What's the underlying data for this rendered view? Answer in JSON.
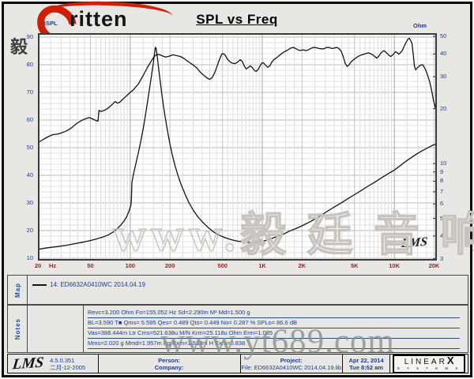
{
  "header": {
    "title": "SPL vs Freq",
    "title_color": "#2e6b9e",
    "logo_brand": "ritten",
    "logo_cjk": "毅廷音响",
    "swoosh_color": "#cf1f04"
  },
  "watermarks": {
    "center": "www.毅 廷 音 响",
    "bottom": "www.yt689.com",
    "lms_stamp": "LMS"
  },
  "chart_data": {
    "type": "line",
    "title": "SPL vs Freq",
    "grid": true,
    "x_axis": {
      "scale": "log",
      "min": 20,
      "max": 21000,
      "unit_label": "Hz",
      "label_color": "#8c2626",
      "ticks": [
        {
          "v": 20,
          "label": "20"
        },
        {
          "v": 50,
          "label": "50"
        },
        {
          "v": 100,
          "label": "100"
        },
        {
          "v": 200,
          "label": "200"
        },
        {
          "v": 500,
          "label": "500"
        },
        {
          "v": 1000,
          "label": "1K"
        },
        {
          "v": 2000,
          "label": "2K"
        },
        {
          "v": 5000,
          "label": "5K"
        },
        {
          "v": 10000,
          "label": "10K"
        },
        {
          "v": 20000,
          "label": "20K"
        }
      ]
    },
    "y_left_axis": {
      "label": "dBSPL",
      "scale": "linear",
      "min": 10,
      "max": 90,
      "minor_step": 2,
      "ticks": [
        90,
        80,
        70,
        60,
        50,
        40,
        30,
        20,
        10
      ],
      "label_color": "#1d3f8f"
    },
    "y_right_axis": {
      "label": "Ohm",
      "scale": "log",
      "min": 3,
      "max": 50,
      "ticks": [
        50,
        40,
        30,
        20,
        10,
        9,
        8,
        7,
        6,
        5,
        4,
        3
      ],
      "label_color": "#1d3f8f"
    },
    "series": [
      {
        "name": "SPL",
        "legend": "14: ED6632A0410WC  2014.04.19",
        "axis": "left",
        "unit": "dB",
        "color": "#141414",
        "points": [
          [
            20,
            51.8
          ],
          [
            22,
            53
          ],
          [
            24,
            54
          ],
          [
            26,
            54.7
          ],
          [
            28,
            54.9
          ],
          [
            30,
            55.3
          ],
          [
            32,
            55.8
          ],
          [
            34,
            56.4
          ],
          [
            36,
            57.2
          ],
          [
            38,
            58.2
          ],
          [
            40,
            59
          ],
          [
            43,
            59.9
          ],
          [
            46,
            60.5
          ],
          [
            49,
            60.9
          ],
          [
            52,
            60.4
          ],
          [
            55,
            59.8
          ],
          [
            57,
            59.6
          ],
          [
            58,
            63.5
          ],
          [
            60,
            63.1
          ],
          [
            63,
            63.4
          ],
          [
            66,
            63.9
          ],
          [
            70,
            64.8
          ],
          [
            74,
            65.9
          ],
          [
            77,
            66.7
          ],
          [
            80,
            66.1
          ],
          [
            83,
            66.4
          ],
          [
            87,
            67.3
          ],
          [
            91,
            68.2
          ],
          [
            95,
            69
          ],
          [
            100,
            70
          ],
          [
            105,
            70.8
          ],
          [
            115,
            73
          ],
          [
            125,
            76
          ],
          [
            135,
            79
          ],
          [
            145,
            81.5
          ],
          [
            152,
            83
          ],
          [
            160,
            83.8
          ],
          [
            168,
            83.6
          ],
          [
            175,
            83.2
          ],
          [
            185,
            82.8
          ],
          [
            195,
            83
          ],
          [
            210,
            83.6
          ],
          [
            225,
            83.3
          ],
          [
            240,
            83
          ],
          [
            255,
            82.3
          ],
          [
            270,
            81.4
          ],
          [
            285,
            80.6
          ],
          [
            300,
            79.9
          ],
          [
            320,
            78.8
          ],
          [
            340,
            77.3
          ],
          [
            360,
            76.2
          ],
          [
            380,
            75.3
          ],
          [
            400,
            74.7
          ],
          [
            415,
            75.2
          ],
          [
            435,
            77
          ],
          [
            455,
            79.5
          ],
          [
            475,
            82
          ],
          [
            495,
            83.9
          ],
          [
            510,
            84
          ],
          [
            525,
            83.4
          ],
          [
            545,
            82
          ],
          [
            565,
            81.2
          ],
          [
            590,
            80.6
          ],
          [
            620,
            80.4
          ],
          [
            650,
            80.9
          ],
          [
            680,
            81.8
          ],
          [
            705,
            81.3
          ],
          [
            730,
            79.6
          ],
          [
            755,
            78.5
          ],
          [
            780,
            78.9
          ],
          [
            810,
            79.6
          ],
          [
            840,
            79
          ],
          [
            870,
            78
          ],
          [
            900,
            77.6
          ],
          [
            930,
            78.3
          ],
          [
            960,
            79.5
          ],
          [
            990,
            80.6
          ],
          [
            1020,
            80.7
          ],
          [
            1060,
            79.8
          ],
          [
            1100,
            79.1
          ],
          [
            1140,
            79.6
          ],
          [
            1180,
            80.9
          ],
          [
            1230,
            81.9
          ],
          [
            1300,
            82.7
          ],
          [
            1380,
            83.8
          ],
          [
            1460,
            84.6
          ],
          [
            1550,
            85.3
          ],
          [
            1640,
            86
          ],
          [
            1720,
            86.3
          ],
          [
            1800,
            85.8
          ],
          [
            1880,
            85.3
          ],
          [
            1960,
            85.2
          ],
          [
            2050,
            85.4
          ],
          [
            2150,
            85.1
          ],
          [
            2250,
            85.5
          ],
          [
            2350,
            86
          ],
          [
            2450,
            86.3
          ],
          [
            2600,
            86.1
          ],
          [
            2750,
            85.8
          ],
          [
            2900,
            85.7
          ],
          [
            3050,
            86.2
          ],
          [
            3200,
            86.3
          ],
          [
            3350,
            85.9
          ],
          [
            3500,
            86
          ],
          [
            3650,
            86.3
          ],
          [
            3800,
            85.9
          ],
          [
            3950,
            85
          ],
          [
            4100,
            83
          ],
          [
            4250,
            80.5
          ],
          [
            4400,
            79.4
          ],
          [
            4550,
            80
          ],
          [
            4700,
            81
          ],
          [
            4900,
            81.8
          ],
          [
            5100,
            82.4
          ],
          [
            5350,
            83.1
          ],
          [
            5600,
            83.5
          ],
          [
            5850,
            83.8
          ],
          [
            6100,
            84.1
          ],
          [
            6350,
            84.3
          ],
          [
            6600,
            84
          ],
          [
            6850,
            83.6
          ],
          [
            7100,
            83
          ],
          [
            7350,
            82.4
          ],
          [
            7600,
            83
          ],
          [
            7850,
            84
          ],
          [
            8100,
            84.7
          ],
          [
            8350,
            85.1
          ],
          [
            8600,
            84.6
          ],
          [
            8850,
            84
          ],
          [
            9100,
            83.5
          ],
          [
            9350,
            83
          ],
          [
            9600,
            83.3
          ],
          [
            9900,
            84
          ],
          [
            10200,
            84.7
          ],
          [
            10500,
            84.4
          ],
          [
            10800,
            83.8
          ],
          [
            11100,
            84.3
          ],
          [
            11500,
            85.2
          ],
          [
            11900,
            86.8
          ],
          [
            12300,
            88.2
          ],
          [
            12700,
            89.3
          ],
          [
            13000,
            89.6
          ],
          [
            13300,
            88.8
          ],
          [
            13600,
            87.7
          ],
          [
            13900,
            84
          ],
          [
            14200,
            79.5
          ],
          [
            14500,
            78.2
          ],
          [
            14900,
            78.8
          ],
          [
            15400,
            79.5
          ],
          [
            15900,
            79.9
          ],
          [
            16400,
            80
          ],
          [
            16900,
            79
          ],
          [
            17400,
            77.8
          ],
          [
            18000,
            75.8
          ],
          [
            18600,
            73.5
          ],
          [
            19200,
            70.5
          ],
          [
            19700,
            67.5
          ],
          [
            20500,
            64.2
          ]
        ]
      },
      {
        "name": "Impedance",
        "legend": "",
        "axis": "right",
        "unit": "Ohm",
        "color": "#141414",
        "points": [
          [
            20,
            3.38
          ],
          [
            24,
            3.45
          ],
          [
            28,
            3.5
          ],
          [
            33,
            3.56
          ],
          [
            38,
            3.63
          ],
          [
            44,
            3.7
          ],
          [
            50,
            3.78
          ],
          [
            56,
            3.86
          ],
          [
            62,
            3.95
          ],
          [
            68,
            4.05
          ],
          [
            74,
            4.2
          ],
          [
            80,
            4.4
          ],
          [
            85,
            4.6
          ],
          [
            90,
            4.85
          ],
          [
            94,
            5.1
          ],
          [
            98,
            5.5
          ],
          [
            101,
            5.9
          ],
          [
            102,
            6.3
          ],
          [
            103,
            7.9
          ],
          [
            106,
            8.8
          ],
          [
            110,
            9.9
          ],
          [
            115,
            11.4
          ],
          [
            120,
            13.2
          ],
          [
            126,
            15.8
          ],
          [
            132,
            19.5
          ],
          [
            138,
            24
          ],
          [
            144,
            29.5
          ],
          [
            149,
            35
          ],
          [
            152,
            39
          ],
          [
            155,
            43.5
          ],
          [
            157,
            43
          ],
          [
            160,
            39
          ],
          [
            164,
            33.5
          ],
          [
            168,
            29
          ],
          [
            173,
            24.5
          ],
          [
            178,
            21
          ],
          [
            184,
            18
          ],
          [
            191,
            15.3
          ],
          [
            199,
            13
          ],
          [
            208,
            11.2
          ],
          [
            218,
            9.8
          ],
          [
            230,
            8.6
          ],
          [
            244,
            7.6
          ],
          [
            260,
            6.8
          ],
          [
            278,
            6.1
          ],
          [
            300,
            5.55
          ],
          [
            325,
            5.1
          ],
          [
            355,
            4.75
          ],
          [
            390,
            4.45
          ],
          [
            430,
            4.2
          ],
          [
            470,
            4.05
          ],
          [
            520,
            3.92
          ],
          [
            580,
            3.82
          ],
          [
            650,
            3.75
          ],
          [
            730,
            3.7
          ],
          [
            820,
            3.68
          ],
          [
            920,
            3.7
          ],
          [
            1030,
            3.76
          ],
          [
            1160,
            3.86
          ],
          [
            1300,
            3.98
          ],
          [
            1450,
            4.1
          ],
          [
            1600,
            4.25
          ],
          [
            1800,
            4.4
          ],
          [
            2000,
            4.55
          ],
          [
            2250,
            4.75
          ],
          [
            2500,
            4.95
          ],
          [
            2800,
            5.2
          ],
          [
            3150,
            5.5
          ],
          [
            3550,
            5.8
          ],
          [
            4000,
            6.1
          ],
          [
            4500,
            6.45
          ],
          [
            5000,
            6.75
          ],
          [
            5600,
            7.1
          ],
          [
            6300,
            7.5
          ],
          [
            7100,
            7.9
          ],
          [
            8000,
            8.35
          ],
          [
            9000,
            8.8
          ],
          [
            10000,
            9.2
          ],
          [
            11200,
            9.8
          ],
          [
            12500,
            10.4
          ],
          [
            14000,
            11
          ],
          [
            15700,
            11.6
          ],
          [
            17500,
            12.1
          ],
          [
            19500,
            12.6
          ],
          [
            20800,
            12.8
          ]
        ]
      }
    ]
  },
  "map_panel": {
    "label": "Map",
    "legend_items": [
      {
        "text": "14: ED6632A0410WC  2014.04.19"
      }
    ]
  },
  "notes_panel": {
    "label": "Notes",
    "lines": [
      "Revc=3.200 Ohm  Fo=155.052 Hz  Sd=2.290m M²  Md=1.500 g",
      "BL=3.590 T■  Qms= 5.595  Qes= 0.489  Qts= 0.449  No= 0.287 %  SPLo= 86.6 dB",
      "Vas=388.444m Ltr  Cms=521.638u M/N  Krm=25.118u Ohm  Erm=1.085",
      "Mms=2.020 g  Mmd=1.957m Kg  Kxm=1.513m H  Exm=0.838"
    ]
  },
  "footer": {
    "lms_logo": "LMS",
    "version": "4.5.0.351",
    "version_date": "二月-12-2005",
    "person_label": "Person:",
    "company_label": "Company:",
    "project_label": "Project:",
    "file_line": "File: ED6632A0410WC 2014.04.19.lib",
    "date": "Apr 22, 2014",
    "time": "Tue  8:52 am",
    "brand_name": "LINEAR",
    "brand_x": "X",
    "brand_sub": "S Y S T E M S"
  }
}
